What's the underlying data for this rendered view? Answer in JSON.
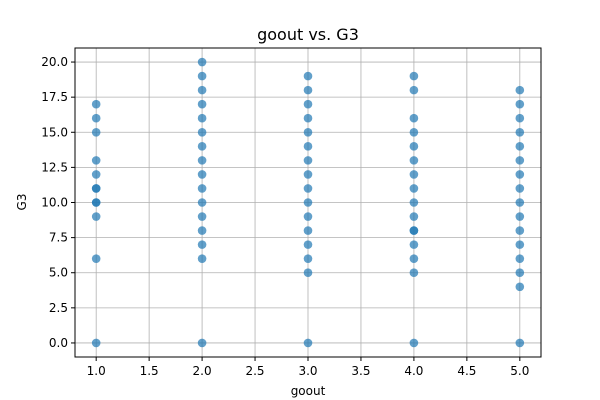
{
  "chart_data": {
    "type": "scatter",
    "title": "goout vs. G3",
    "xlabel": "goout",
    "ylabel": "G3",
    "xlim": [
      0.8,
      5.2
    ],
    "ylim": [
      -1.0,
      21.0
    ],
    "xticks": [
      "1.0",
      "1.5",
      "2.0",
      "2.5",
      "3.0",
      "3.5",
      "4.0",
      "4.5",
      "5.0"
    ],
    "yticks": [
      "0.0",
      "2.5",
      "5.0",
      "7.5",
      "10.0",
      "12.5",
      "15.0",
      "17.5",
      "20.0"
    ],
    "grid": true,
    "color": "#1f77b4",
    "series": [
      {
        "x": [
          1,
          1,
          1,
          1,
          1,
          1,
          1,
          1,
          1,
          1,
          1,
          1,
          2,
          2,
          2,
          2,
          2,
          2,
          2,
          2,
          2,
          2,
          2,
          2,
          2,
          2,
          2,
          2,
          3,
          3,
          3,
          3,
          3,
          3,
          3,
          3,
          3,
          3,
          3,
          3,
          3,
          3,
          3,
          3,
          4,
          4,
          4,
          4,
          4,
          4,
          4,
          4,
          4,
          4,
          4,
          4,
          4,
          4,
          4,
          4,
          5,
          5,
          5,
          5,
          5,
          5,
          5,
          5,
          5,
          5,
          5,
          5,
          5,
          5,
          5,
          5
        ],
        "y": [
          0,
          6,
          9,
          10,
          11,
          12,
          13,
          15,
          16,
          17,
          10,
          11,
          0,
          6,
          7,
          8,
          9,
          10,
          11,
          12,
          13,
          14,
          15,
          16,
          17,
          18,
          19,
          20,
          0,
          5,
          6,
          7,
          8,
          9,
          10,
          11,
          12,
          13,
          14,
          15,
          16,
          17,
          18,
          19,
          0,
          5,
          6,
          7,
          8,
          9,
          10,
          11,
          12,
          13,
          14,
          15,
          16,
          18,
          19,
          8,
          0,
          4,
          5,
          6,
          7,
          8,
          9,
          10,
          11,
          12,
          13,
          14,
          15,
          16,
          17,
          18
        ]
      }
    ]
  }
}
